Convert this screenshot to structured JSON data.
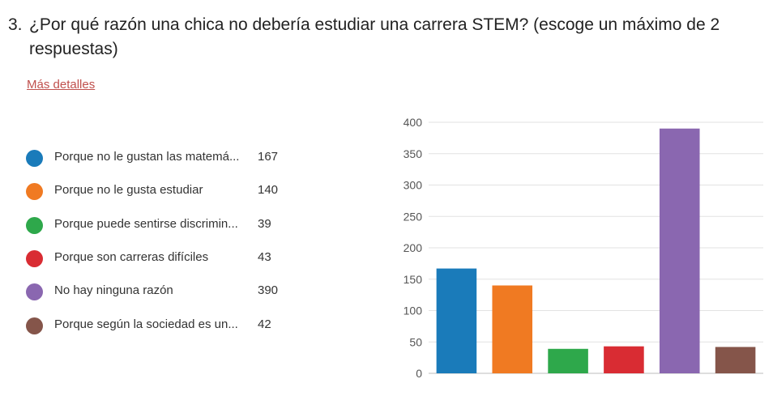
{
  "question": {
    "number": "3.",
    "text": "¿Por qué razón una chica  no debería estudiar una carrera STEM? (escoge un máximo de 2 respuestas)"
  },
  "more_link": "Más detalles",
  "legend": [
    {
      "label": "Porque no le gustan las matemá...",
      "count": "167",
      "color": "#1a7bba"
    },
    {
      "label": "Porque no le gusta estudiar",
      "count": "140",
      "color": "#f07a22"
    },
    {
      "label": "Porque puede sentirse discrimin...",
      "count": "39",
      "color": "#2ea84b"
    },
    {
      "label": "Porque son carreras difíciles",
      "count": "43",
      "color": "#d92c33"
    },
    {
      "label": "No hay ninguna razón",
      "count": "390",
      "color": "#8a67b0"
    },
    {
      "label": "Porque según la sociedad es un...",
      "count": "42",
      "color": "#85554a"
    }
  ],
  "chart_data": {
    "type": "bar",
    "values": [
      167,
      140,
      39,
      43,
      390,
      42
    ],
    "colors": [
      "#1a7bba",
      "#f07a22",
      "#2ea84b",
      "#d92c33",
      "#8a67b0",
      "#85554a"
    ],
    "ylim": [
      0,
      400
    ],
    "yticks": [
      0,
      50,
      100,
      150,
      200,
      250,
      300,
      350,
      400
    ],
    "grid": true,
    "legend_placement": "left"
  }
}
